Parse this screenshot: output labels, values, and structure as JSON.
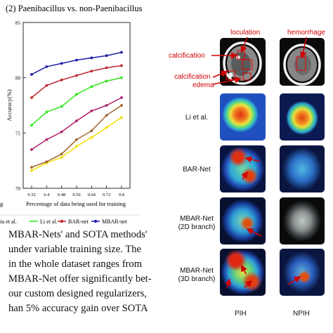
{
  "chart_data": {
    "type": "line",
    "title": "(2) Paenibacillus vs. non-Paenibacillus",
    "xlabel": "Percentage of data being used for training",
    "ylabel": "Accuracy(%)",
    "x": [
      0.32,
      0.4,
      0.48,
      0.56,
      0.64,
      0.72,
      0.8
    ],
    "x_tick_labels": [
      "0.32",
      "0.4",
      "0.48",
      "0.56",
      "0.64",
      "0.72",
      "0.8"
    ],
    "ylim": [
      70,
      85
    ],
    "y_ticks": [
      70,
      75,
      80,
      85
    ],
    "grid": false,
    "legend_placement": "bottom",
    "series": [
      {
        "name": "MBAR-net",
        "color": "#1f1fa8",
        "values": [
          80.3,
          81.0,
          81.3,
          81.6,
          81.8,
          82.0,
          82.3
        ]
      },
      {
        "name": "BAR-net",
        "color": "#c0282f",
        "values": [
          78.2,
          79.3,
          79.8,
          80.2,
          80.6,
          80.9,
          81.1
        ]
      },
      {
        "name": "Li et al.",
        "color": "#33e61f",
        "values": [
          75.7,
          76.9,
          77.4,
          78.5,
          79.2,
          79.7,
          80.0
        ]
      },
      {
        "name": "",
        "color": "#b0206e",
        "values": [
          73.5,
          74.4,
          75.1,
          76.1,
          77.0,
          77.5,
          78.2
        ]
      },
      {
        "name": "",
        "color": "#a06432",
        "values": [
          71.9,
          72.4,
          73.1,
          74.4,
          75.2,
          76.6,
          77.5
        ]
      },
      {
        "name": "",
        "color": "#f0e000",
        "values": [
          71.6,
          72.3,
          72.8,
          73.8,
          74.6,
          75.5,
          76.4
        ]
      }
    ],
    "legend": [
      {
        "label": "iu et al.",
        "color": "#c8c400",
        "marker": "line"
      },
      {
        "label": "Li et al.",
        "color": "#33e61f",
        "marker": "line"
      },
      {
        "label": "BAR-net",
        "color": "#c0282f",
        "marker": "dot"
      },
      {
        "label": "MBAR-net",
        "color": "#1f1fa8",
        "marker": "dot"
      }
    ],
    "left_cut_label": "g"
  },
  "paper_text": [
    "MBAR-Nets' and SOTA methods'",
    "under variable training size. The",
    "in the whole dataset ranges from",
    "MBAR-Net offer significantly bet-",
    "our custom designed regularizers,",
    "han 5% accuracy gain over SOTA"
  ],
  "figure": {
    "annotations": {
      "loculation": "loculation",
      "hemorrhage": "hemorrhage",
      "calcification_1": "calcification",
      "calcification_2": "calcification",
      "edema": "edema"
    },
    "rows": [
      {
        "label": "Li et al."
      },
      {
        "label": "BAR-Net"
      },
      {
        "label_line1": "MBAR-Net",
        "label_line2": "(2D branch)"
      },
      {
        "label_line1": "MBAR-Net",
        "label_line2": "(3D branch)"
      }
    ],
    "columns": [
      "PIH",
      "NPIH"
    ],
    "colors": {
      "annotation_red": "#d10000"
    }
  }
}
